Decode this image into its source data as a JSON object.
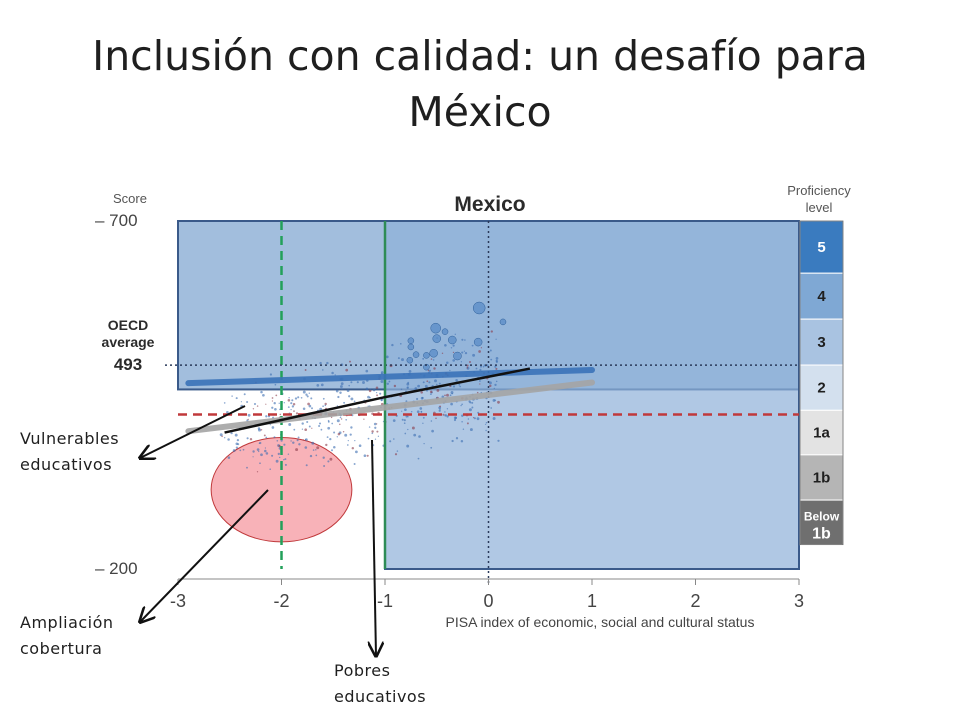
{
  "slide": {
    "title_line1": "Inclusión con calidad: un desafío para",
    "title_line2": "México"
  },
  "callouts": {
    "vulnerables": [
      "Vulnerables",
      "educativos"
    ],
    "ampliacion": [
      "Ampliación",
      "cobertura"
    ],
    "pobres": [
      "Pobres",
      "educativos"
    ]
  },
  "chart_data": {
    "type": "scatter",
    "title": "Mexico",
    "ylabel": "Score",
    "xlabel": "PISA index of economic, social and cultural status",
    "xlim": [
      -3,
      3
    ],
    "ylim": [
      200,
      700
    ],
    "x_ticks": [
      -3,
      -2,
      -1,
      0,
      1,
      2,
      3
    ],
    "y_ticks": [
      700,
      200
    ],
    "y_tick_labels": [
      "– 700",
      "– 200"
    ],
    "oecd_average": {
      "label_line1": "OECD",
      "label_line2": "average",
      "value": 493
    },
    "proficiency": {
      "header_line1": "Proficiency",
      "header_line2": "level",
      "levels": [
        {
          "label": "5",
          "from": 625,
          "to": 700,
          "color": "#3a7bbf",
          "text_color": "#ffffff"
        },
        {
          "label": "4",
          "from": 559,
          "to": 625,
          "color": "#7fa8d4",
          "text_color": "#1f1f1f"
        },
        {
          "label": "3",
          "from": 493,
          "to": 559,
          "color": "#a9c3e1",
          "text_color": "#1f1f1f"
        },
        {
          "label": "2",
          "from": 428,
          "to": 493,
          "color": "#d3e0ee",
          "text_color": "#1f1f1f"
        },
        {
          "label": "1a",
          "from": 364,
          "to": 428,
          "color": "#e3e3e3",
          "text_color": "#1f1f1f"
        },
        {
          "label": "1b",
          "from": 299,
          "to": 364,
          "color": "#b5b5b5",
          "text_color": "#1f1f1f"
        },
        {
          "label_line1": "Below",
          "label_line2": "1b",
          "from": 235,
          "to": 299,
          "color": "#6f6f6f",
          "text_color": "#ffffff"
        }
      ]
    },
    "trend_lines": [
      {
        "name": "",
        "color": "#3a72b8",
        "points": [
          [
            -2.9,
            467
          ],
          [
            1.0,
            486
          ]
        ]
      },
      {
        "name": "",
        "color": "#a4a4a4",
        "points": [
          [
            -2.9,
            398
          ],
          [
            1.0,
            468
          ]
        ]
      }
    ],
    "annotation_lines": [
      {
        "color": "#111111",
        "points": [
          [
            -2.55,
            396
          ],
          [
            -1.0,
            447
          ]
        ]
      },
      {
        "color": "#111111",
        "points": [
          [
            -1.0,
            447
          ],
          [
            0.4,
            488
          ]
        ]
      }
    ],
    "reference_lines": [
      {
        "axis": "x",
        "value": -2.0,
        "color": "#22a05a",
        "style": "dashed"
      },
      {
        "axis": "x",
        "value": 0.0,
        "color": "#2a3a5a",
        "style": "dotted"
      },
      {
        "axis": "y",
        "value": 493,
        "color": "#2a3a5a",
        "style": "dotted"
      },
      {
        "axis": "y",
        "value": 422,
        "color": "#c0393b",
        "style": "dashed"
      },
      {
        "axis": "x",
        "value": -1.0,
        "color": "#2e8c56",
        "style": "solid"
      }
    ],
    "highlight_regions": [
      {
        "x": [
          -3.0,
          3.0
        ],
        "y": [
          458,
          700
        ],
        "color": "#7aa3cf"
      },
      {
        "x": [
          -1.0,
          3.0
        ],
        "y": [
          200,
          700
        ],
        "color": "#8eb1d8"
      }
    ],
    "ellipse": {
      "cx": -2.0,
      "cy": 314,
      "rx": 0.68,
      "ry": 75,
      "color": "#f7a5ab",
      "stroke": "#c0393b"
    },
    "bubbles": [
      {
        "x": -0.75,
        "y": 528,
        "r": 3
      },
      {
        "x": -0.75,
        "y": 519,
        "r": 3
      },
      {
        "x": -0.51,
        "y": 546,
        "r": 5
      },
      {
        "x": -0.35,
        "y": 529,
        "r": 4
      },
      {
        "x": -0.53,
        "y": 510,
        "r": 4
      },
      {
        "x": -0.1,
        "y": 526,
        "r": 4
      },
      {
        "x": -0.5,
        "y": 531,
        "r": 4
      },
      {
        "x": -0.6,
        "y": 507,
        "r": 3
      },
      {
        "x": -0.09,
        "y": 575,
        "r": 6
      },
      {
        "x": 0.14,
        "y": 555,
        "r": 3
      },
      {
        "x": -0.6,
        "y": 490,
        "r": 3
      },
      {
        "x": -0.3,
        "y": 506,
        "r": 4
      },
      {
        "x": -0.7,
        "y": 508,
        "r": 3
      },
      {
        "x": -0.76,
        "y": 500,
        "r": 3
      },
      {
        "x": -0.42,
        "y": 541,
        "r": 3
      }
    ]
  }
}
